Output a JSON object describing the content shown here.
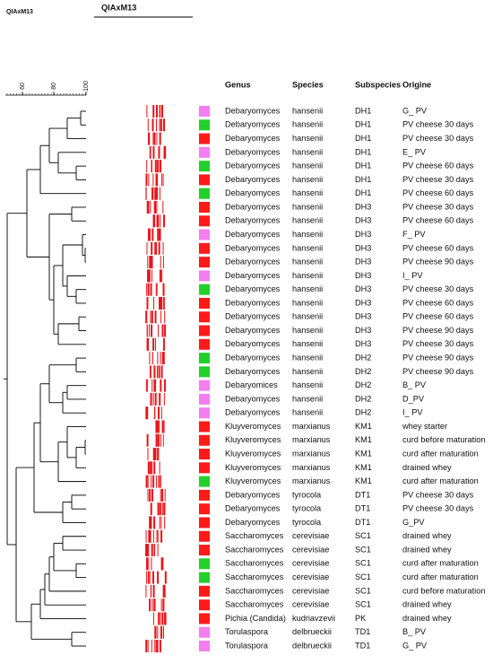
{
  "header": {
    "corner_label": "QIAxM13",
    "title": "QIAxM13"
  },
  "axis": {
    "ticks": [
      "60",
      "80",
      "100"
    ]
  },
  "columns": [
    "Genus",
    "Species",
    "Subspecies",
    "Origine"
  ],
  "rows": [
    {
      "genus": "Debaryomyces",
      "species": "hansenii",
      "subspecies": "DH1",
      "origine": "G_ PV",
      "color": "#f47ef0"
    },
    {
      "genus": "Debaryomyces",
      "species": "hansenii",
      "subspecies": "DH1",
      "origine": "PV cheese 30 days",
      "color": "#22d02a"
    },
    {
      "genus": "Debaryomyces",
      "species": "hansenii",
      "subspecies": "DH1",
      "origine": "PV cheese 30 days",
      "color": "#ff1a1a"
    },
    {
      "genus": "Debaryomyces",
      "species": "hansenii",
      "subspecies": "DH1",
      "origine": "E_ PV",
      "color": "#f47ef0"
    },
    {
      "genus": "Debaryomyces",
      "species": "hansenii",
      "subspecies": "DH1",
      "origine": "PV cheese 60 days",
      "color": "#22d02a"
    },
    {
      "genus": "Debaryomyces",
      "species": "hansenii",
      "subspecies": "DH1",
      "origine": "PV cheese 30 days",
      "color": "#ff1a1a"
    },
    {
      "genus": "Debaryomyces",
      "species": "hansenii",
      "subspecies": "DH1",
      "origine": "PV cheese 60 days",
      "color": "#22d02a"
    },
    {
      "genus": "Debaryomyces",
      "species": "hansenii",
      "subspecies": "DH3",
      "origine": "PV cheese 30 days",
      "color": "#ff1a1a"
    },
    {
      "genus": "Debaryomyces",
      "species": "hansenii",
      "subspecies": "DH3",
      "origine": "PV cheese 60 days",
      "color": "#ff1a1a"
    },
    {
      "genus": "Debaryomyces",
      "species": "hansenii",
      "subspecies": "DH3",
      "origine": "F_ PV",
      "color": "#f47ef0"
    },
    {
      "genus": "Debaryomyces",
      "species": "hansenii",
      "subspecies": "DH3",
      "origine": "PV cheese 60 days",
      "color": "#ff1a1a"
    },
    {
      "genus": "Debaryomyces",
      "species": "hansenii",
      "subspecies": "DH3",
      "origine": "PV cheese 90 days",
      "color": "#ff1a1a"
    },
    {
      "genus": "Debaryomyces",
      "species": "hansenii",
      "subspecies": "DH3",
      "origine": "I_ PV",
      "color": "#f47ef0"
    },
    {
      "genus": "Debaryomyces",
      "species": "hansenii",
      "subspecies": "DH3",
      "origine": "PV cheese 30 days",
      "color": "#22d02a"
    },
    {
      "genus": "Debaryomyces",
      "species": "hansenii",
      "subspecies": "DH3",
      "origine": "PV cheese 60 days",
      "color": "#ff1a1a"
    },
    {
      "genus": "Debaryomyces",
      "species": "hansenii",
      "subspecies": "DH3",
      "origine": "PV cheese 60 days",
      "color": "#ff1a1a"
    },
    {
      "genus": "Debaryomyces",
      "species": "hansenii",
      "subspecies": "DH3",
      "origine": "PV cheese 90 days",
      "color": "#ff1a1a"
    },
    {
      "genus": "Debaryomyces",
      "species": "hansenii",
      "subspecies": "DH3",
      "origine": "PV cheese 30 days",
      "color": "#ff1a1a"
    },
    {
      "genus": "Debaryomyces",
      "species": "hansenii",
      "subspecies": "DH2",
      "origine": "PV cheese 90 days",
      "color": "#22d02a"
    },
    {
      "genus": "Debaryomyces",
      "species": "hansenii",
      "subspecies": "DH2",
      "origine": "PV cheese 90 days",
      "color": "#22d02a"
    },
    {
      "genus": "Debaryomices",
      "species": "hansenii",
      "subspecies": "DH2",
      "origine": "B_ PV",
      "color": "#f47ef0"
    },
    {
      "genus": "Debaryomyces",
      "species": "hansenii",
      "subspecies": "DH2",
      "origine": "D_PV",
      "color": "#f47ef0"
    },
    {
      "genus": "Debaryomyces",
      "species": "hansenii",
      "subspecies": "DH2",
      "origine": "I_ PV",
      "color": "#f47ef0"
    },
    {
      "genus": "Kluyveromyces",
      "species": "marxianus",
      "subspecies": "KM1",
      "origine": "whey starter",
      "color": "#ff1a1a"
    },
    {
      "genus": "Kluyveromyces",
      "species": "marxianus",
      "subspecies": "KM1",
      "origine": "curd before maturation",
      "color": "#ff1a1a"
    },
    {
      "genus": "Kluyveromyces",
      "species": "marxianus",
      "subspecies": "KM1",
      "origine": "curd after maturation",
      "color": "#ff1a1a"
    },
    {
      "genus": "Kluyveromyces",
      "species": "marxianus",
      "subspecies": "KM1",
      "origine": "drained whey",
      "color": "#ff1a1a"
    },
    {
      "genus": "Kluyveromyces",
      "species": "marxianus",
      "subspecies": "KM1",
      "origine": "curd after maturation",
      "color": "#22d02a"
    },
    {
      "genus": "Debaryomyces",
      "species": "tyrocola",
      "subspecies": "DT1",
      "origine": "PV cheese 30 days",
      "color": "#ff1a1a"
    },
    {
      "genus": "Debaryomyces",
      "species": "tyrocola",
      "subspecies": "DT1",
      "origine": "PV cheese 30 days",
      "color": "#ff1a1a"
    },
    {
      "genus": "Debaryomyces",
      "species": "tyrocola",
      "subspecies": "DT1",
      "origine": "G_PV",
      "color": "#ff1a1a"
    },
    {
      "genus": "Saccharomyces",
      "species": "cerevisiae",
      "subspecies": "SC1",
      "origine": "drained whey",
      "color": "#ff1a1a"
    },
    {
      "genus": "Saccharomyces",
      "species": "cerevisiae",
      "subspecies": "SC1",
      "origine": "drained whey",
      "color": "#ff1a1a"
    },
    {
      "genus": "Saccharomyces",
      "species": "cerevisiae",
      "subspecies": "SC1",
      "origine": "curd after maturation",
      "color": "#22d02a"
    },
    {
      "genus": "Saccharomyces",
      "species": "cerevisiae",
      "subspecies": "SC1",
      "origine": "curd after maturation",
      "color": "#22d02a"
    },
    {
      "genus": "Saccharomyces",
      "species": "cerevisiae",
      "subspecies": "SC1",
      "origine": "curd before maturation",
      "color": "#ff1a1a"
    },
    {
      "genus": "Saccharomyces",
      "species": "cerevisiae",
      "subspecies": "SC1",
      "origine": "drained whey",
      "color": "#ff1a1a"
    },
    {
      "genus": "Pichia (Candida)",
      "species": "kudriavzevii",
      "subspecies": "PK",
      "origine": "drained whey",
      "color": "#ff1a1a"
    },
    {
      "genus": "Torulaspora",
      "species": "delbrueckii",
      "subspecies": "TD1",
      "origine": "B_ PV",
      "color": "#f47ef0"
    },
    {
      "genus": "Torulaspora",
      "species": "delbrueckii",
      "subspecies": "TD1",
      "origine": "G_ PV",
      "color": "#f47ef0"
    }
  ]
}
